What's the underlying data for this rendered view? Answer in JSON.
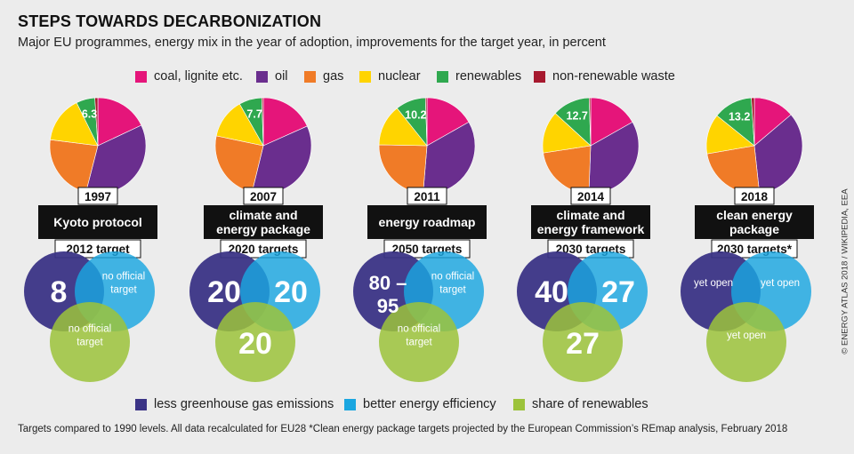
{
  "title": "STEPS TOWARDS DECARBONIZATION",
  "subtitle": "Major EU programmes, energy mix in the year of adoption, improvements for the target year, in percent",
  "legend_mix": [
    {
      "label": "coal, lignite etc.",
      "color": "#e5157a"
    },
    {
      "label": "oil",
      "color": "#6a2e8e"
    },
    {
      "label": "gas",
      "color": "#f07b27"
    },
    {
      "label": "nuclear",
      "color": "#ffd400"
    },
    {
      "label": "renewables",
      "color": "#2fa84f"
    },
    {
      "label": "non-renewable waste",
      "color": "#a6192e"
    }
  ],
  "legend_targets": [
    {
      "label": "less greenhouse gas emissions",
      "color": "#3b3486"
    },
    {
      "label": "better energy efficiency",
      "color": "#1aa6e0"
    },
    {
      "label": "share of renewables",
      "color": "#9cc33b"
    }
  ],
  "chart_data": {
    "type": "pie",
    "series_order": [
      "coal, lignite etc.",
      "oil",
      "gas",
      "nuclear",
      "renewables",
      "non-renewable waste"
    ],
    "programmes": [
      {
        "year": "1997",
        "name": "Kyoto protocol",
        "target_label": "2012 target",
        "mix": [
          18,
          36,
          23,
          15.7,
          6.3,
          1.0
        ],
        "renewables_label": "6.3",
        "targets": {
          "emissions": "8",
          "efficiency": "no official target",
          "renewables": "no official target"
        }
      },
      {
        "year": "2007",
        "name": "climate and energy package",
        "target_label": "2020 targets",
        "mix": [
          18.3,
          35.5,
          24.5,
          13.5,
          7.7,
          0.5
        ],
        "renewables_label": "7.7",
        "targets": {
          "emissions": "20",
          "efficiency": "20",
          "renewables": "20"
        }
      },
      {
        "year": "2011",
        "name": "energy roadmap",
        "target_label": "2050 targets",
        "mix": [
          16.8,
          34.5,
          24,
          14,
          10.2,
          0.5
        ],
        "renewables_label": "10.2",
        "targets": {
          "emissions": "80 – 95",
          "efficiency": "no official target",
          "renewables": "no official target"
        }
      },
      {
        "year": "2014",
        "name": "climate and energy framework",
        "target_label": "2030 targets",
        "mix": [
          16.8,
          33.8,
          22,
          14.2,
          12.7,
          0.5
        ],
        "renewables_label": "12.7",
        "targets": {
          "emissions": "40",
          "efficiency": "27",
          "renewables": "27"
        }
      },
      {
        "year": "2018",
        "name": "clean energy package",
        "target_label": "2030 targets*",
        "mix": [
          13.8,
          34.5,
          24,
          13.5,
          13.2,
          1.0
        ],
        "renewables_label": "13.2",
        "targets": {
          "emissions": "yet open",
          "efficiency": "yet open",
          "renewables": "yet open"
        }
      }
    ]
  },
  "footnote": "Targets compared to 1990 levels. All data recalculated for EU28   *Clean energy package targets projected by the European Commission’s REmap analysis, February 2018",
  "credit": "© ENERGY ATLAS 2018 / WIKIPEDIA, EEA"
}
